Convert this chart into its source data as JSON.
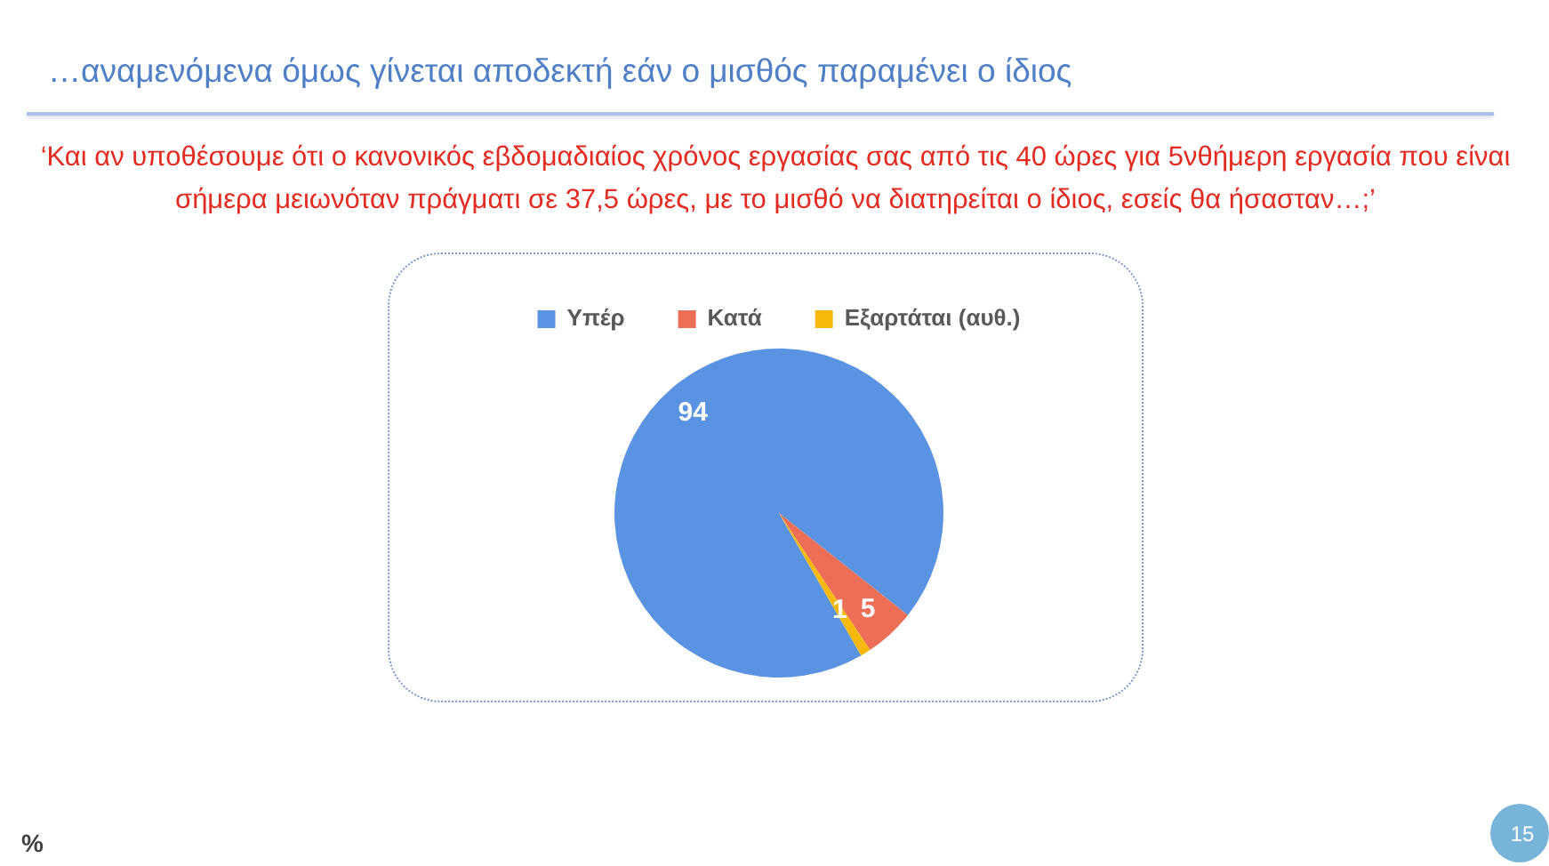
{
  "chart_data": {
    "type": "pie",
    "title": "…αναμενόμενα όμως γίνεται αποδεκτή εάν ο μισθός παραμένει ο ίδιος",
    "subtitle": "‘Και αν υποθέσουμε ότι ο κανονικός εβδομαδιαίος χρόνος εργασίας σας από τις 40 ώρες για 5νθήμερη εργασία που είναι σήμερα μειωνόταν πράγματι σε 37,5 ώρες, με το μισθό να διατηρείται ο ίδιος, εσείς θα ήσασταν…;’",
    "categories": [
      "Υπέρ",
      "Κατά",
      "Εξαρτάται (αυθ.)"
    ],
    "values": [
      94,
      5,
      1
    ],
    "colors": [
      "#5b93e3",
      "#ec6e57",
      "#f6b90b"
    ],
    "data_labels": true,
    "legend": "top",
    "annotations": [
      "%",
      "15"
    ]
  }
}
